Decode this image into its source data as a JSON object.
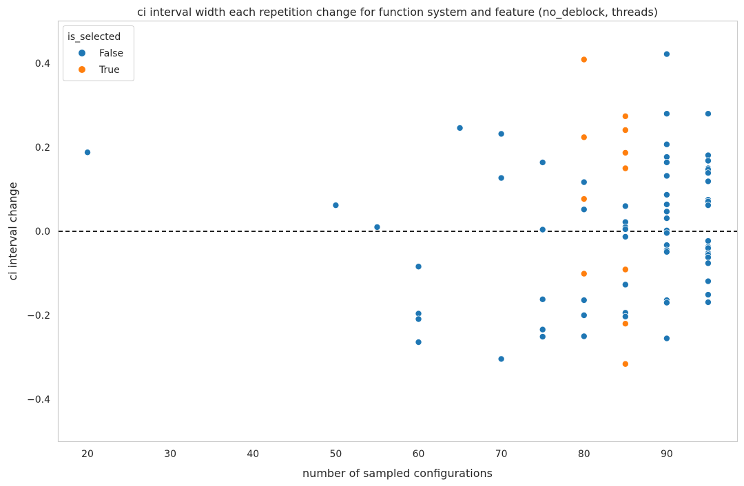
{
  "chart_data": {
    "type": "scatter",
    "title": "ci interval width each repetition change for function system and feature (no_deblock, threads)",
    "xlabel": "number of sampled configurations",
    "ylabel": "ci interval change",
    "xlim": [
      16.5,
      98.5
    ],
    "ylim": [
      -0.5,
      0.5
    ],
    "xticks": [
      20,
      30,
      40,
      50,
      60,
      70,
      80,
      90
    ],
    "yticks": [
      -0.4,
      -0.2,
      0.0,
      0.2,
      0.4
    ],
    "xtick_labels": [
      "20",
      "30",
      "40",
      "50",
      "60",
      "70",
      "80",
      "90"
    ],
    "ytick_labels": [
      "−0.4",
      "−0.2",
      "0.0",
      "0.2",
      "0.4"
    ],
    "grid": false,
    "reference_line": {
      "y": 0.0,
      "style": "dashed",
      "color": "#000000"
    },
    "legend": {
      "title": "is_selected",
      "placement": "top-left",
      "entries": [
        {
          "label": "False",
          "color": "#1f77b4"
        },
        {
          "label": "True",
          "color": "#ff7f0e"
        }
      ]
    },
    "series": [
      {
        "name": "False",
        "color": "#1f77b4",
        "points": [
          [
            20,
            0.188
          ],
          [
            50,
            0.062
          ],
          [
            55,
            0.01
          ],
          [
            60,
            -0.084
          ],
          [
            60,
            -0.196
          ],
          [
            60,
            -0.209
          ],
          [
            60,
            -0.264
          ],
          [
            65,
            0.246
          ],
          [
            70,
            0.232
          ],
          [
            70,
            0.127
          ],
          [
            70,
            -0.304
          ],
          [
            75,
            0.164
          ],
          [
            75,
            0.004
          ],
          [
            75,
            -0.162
          ],
          [
            75,
            -0.234
          ],
          [
            75,
            -0.251
          ],
          [
            80,
            0.117
          ],
          [
            80,
            0.052
          ],
          [
            80,
            -0.164
          ],
          [
            80,
            -0.2
          ],
          [
            80,
            -0.25
          ],
          [
            85,
            0.06
          ],
          [
            85,
            0.022
          ],
          [
            85,
            0.01
          ],
          [
            85,
            0.005
          ],
          [
            85,
            -0.013
          ],
          [
            85,
            -0.127
          ],
          [
            85,
            -0.194
          ],
          [
            85,
            -0.203
          ],
          [
            90,
            0.422
          ],
          [
            90,
            0.28
          ],
          [
            90,
            0.207
          ],
          [
            90,
            0.177
          ],
          [
            90,
            0.164
          ],
          [
            90,
            0.132
          ],
          [
            90,
            0.087
          ],
          [
            90,
            0.064
          ],
          [
            90,
            0.047
          ],
          [
            90,
            0.031
          ],
          [
            90,
            0.002
          ],
          [
            90,
            -0.004
          ],
          [
            90,
            -0.033
          ],
          [
            90,
            -0.045
          ],
          [
            90,
            -0.049
          ],
          [
            90,
            -0.164
          ],
          [
            90,
            -0.17
          ],
          [
            90,
            -0.255
          ],
          [
            95,
            0.28
          ],
          [
            95,
            0.181
          ],
          [
            95,
            0.168
          ],
          [
            95,
            0.15
          ],
          [
            95,
            0.147
          ],
          [
            95,
            0.139
          ],
          [
            95,
            0.119
          ],
          [
            95,
            0.075
          ],
          [
            95,
            0.071
          ],
          [
            95,
            0.062
          ],
          [
            95,
            -0.023
          ],
          [
            95,
            -0.037
          ],
          [
            95,
            -0.04
          ],
          [
            95,
            -0.052
          ],
          [
            95,
            -0.056
          ],
          [
            95,
            -0.062
          ],
          [
            95,
            -0.076
          ],
          [
            95,
            -0.119
          ],
          [
            95,
            -0.151
          ],
          [
            95,
            -0.169
          ]
        ]
      },
      {
        "name": "True",
        "color": "#ff7f0e",
        "points": [
          [
            80,
            0.409
          ],
          [
            80,
            0.224
          ],
          [
            80,
            0.077
          ],
          [
            80,
            -0.101
          ],
          [
            85,
            0.274
          ],
          [
            85,
            0.241
          ],
          [
            85,
            0.187
          ],
          [
            85,
            0.15
          ],
          [
            85,
            -0.091
          ],
          [
            85,
            -0.22
          ],
          [
            85,
            -0.316
          ]
        ]
      }
    ]
  }
}
